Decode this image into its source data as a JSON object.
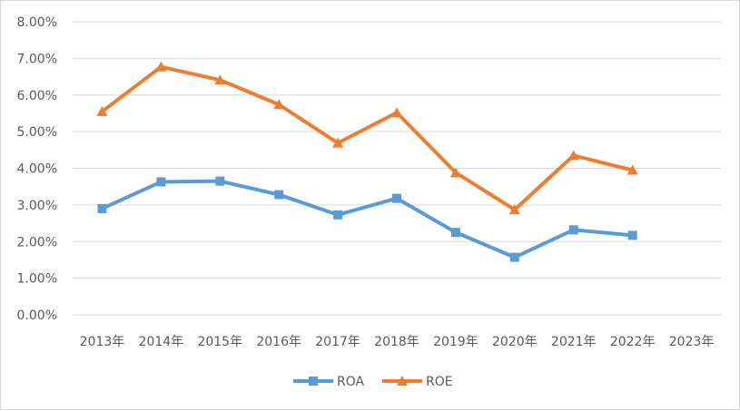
{
  "chart_data": {
    "type": "line",
    "categories": [
      "2013年",
      "2014年",
      "2015年",
      "2016年",
      "2017年",
      "2018年",
      "2019年",
      "2020年",
      "2021年",
      "2022年",
      "2023年"
    ],
    "ylim": [
      0,
      0.08
    ],
    "yticks": [
      "0.00%",
      "1.00%",
      "2.00%",
      "3.00%",
      "4.00%",
      "5.00%",
      "6.00%",
      "7.00%",
      "8.00%"
    ],
    "grid": true,
    "legend": "bottom",
    "series": [
      {
        "name": "ROA",
        "color": "#5b9bd5",
        "marker": "square",
        "values": [
          0.029,
          0.0363,
          0.0365,
          0.0328,
          0.0273,
          0.0318,
          0.0225,
          0.0157,
          0.0232,
          0.0217,
          null
        ]
      },
      {
        "name": "ROE",
        "color": "#ed7d31",
        "marker": "triangle",
        "values": [
          0.0555,
          0.0677,
          0.0641,
          0.0574,
          0.0469,
          0.0552,
          0.0388,
          0.0287,
          0.0435,
          0.0395,
          null
        ]
      }
    ]
  }
}
